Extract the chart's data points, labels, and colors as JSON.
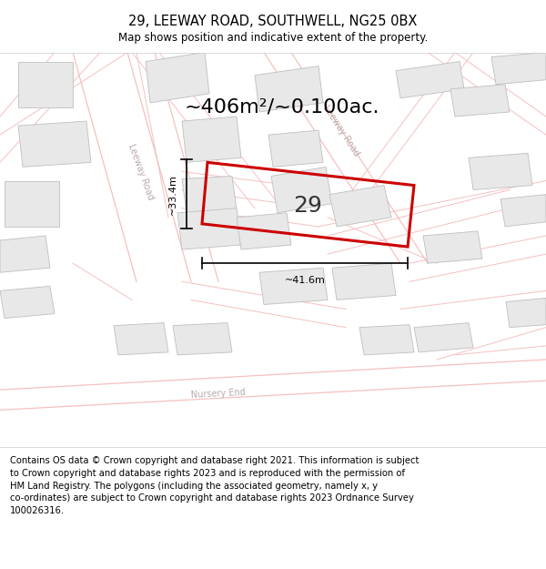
{
  "title": "29, LEEWAY ROAD, SOUTHWELL, NG25 0BX",
  "subtitle": "Map shows position and indicative extent of the property.",
  "area_text": "~406m²/~0.100ac.",
  "property_number": "29",
  "dim_width": "~41.6m",
  "dim_height": "~33.4m",
  "footer": "Contains OS data © Crown copyright and database right 2021. This information is subject to Crown copyright and database rights 2023 and is reproduced with the permission of HM Land Registry. The polygons (including the associated geometry, namely x, y co-ordinates) are subject to Crown copyright and database rights 2023 Ordnance Survey 100026316.",
  "bg_color": "#ffffff",
  "map_bg": "#ffffff",
  "road_color": "#f5c0c0",
  "road_lw": 0.8,
  "building_face": "#e8e8e8",
  "building_edge": "#c0bebe",
  "building_lw": 0.6,
  "property_edge": "#cc0000",
  "property_lw": 2.2,
  "dim_color": "#000000",
  "label_color": "#c0b0b0",
  "road_label_color": "#b8aaaa",
  "title_fontsize": 10.5,
  "subtitle_fontsize": 8.5,
  "area_fontsize": 16,
  "num_fontsize": 18,
  "dim_fontsize": 8,
  "road_label_fontsize": 7,
  "footer_fontsize": 7.2
}
